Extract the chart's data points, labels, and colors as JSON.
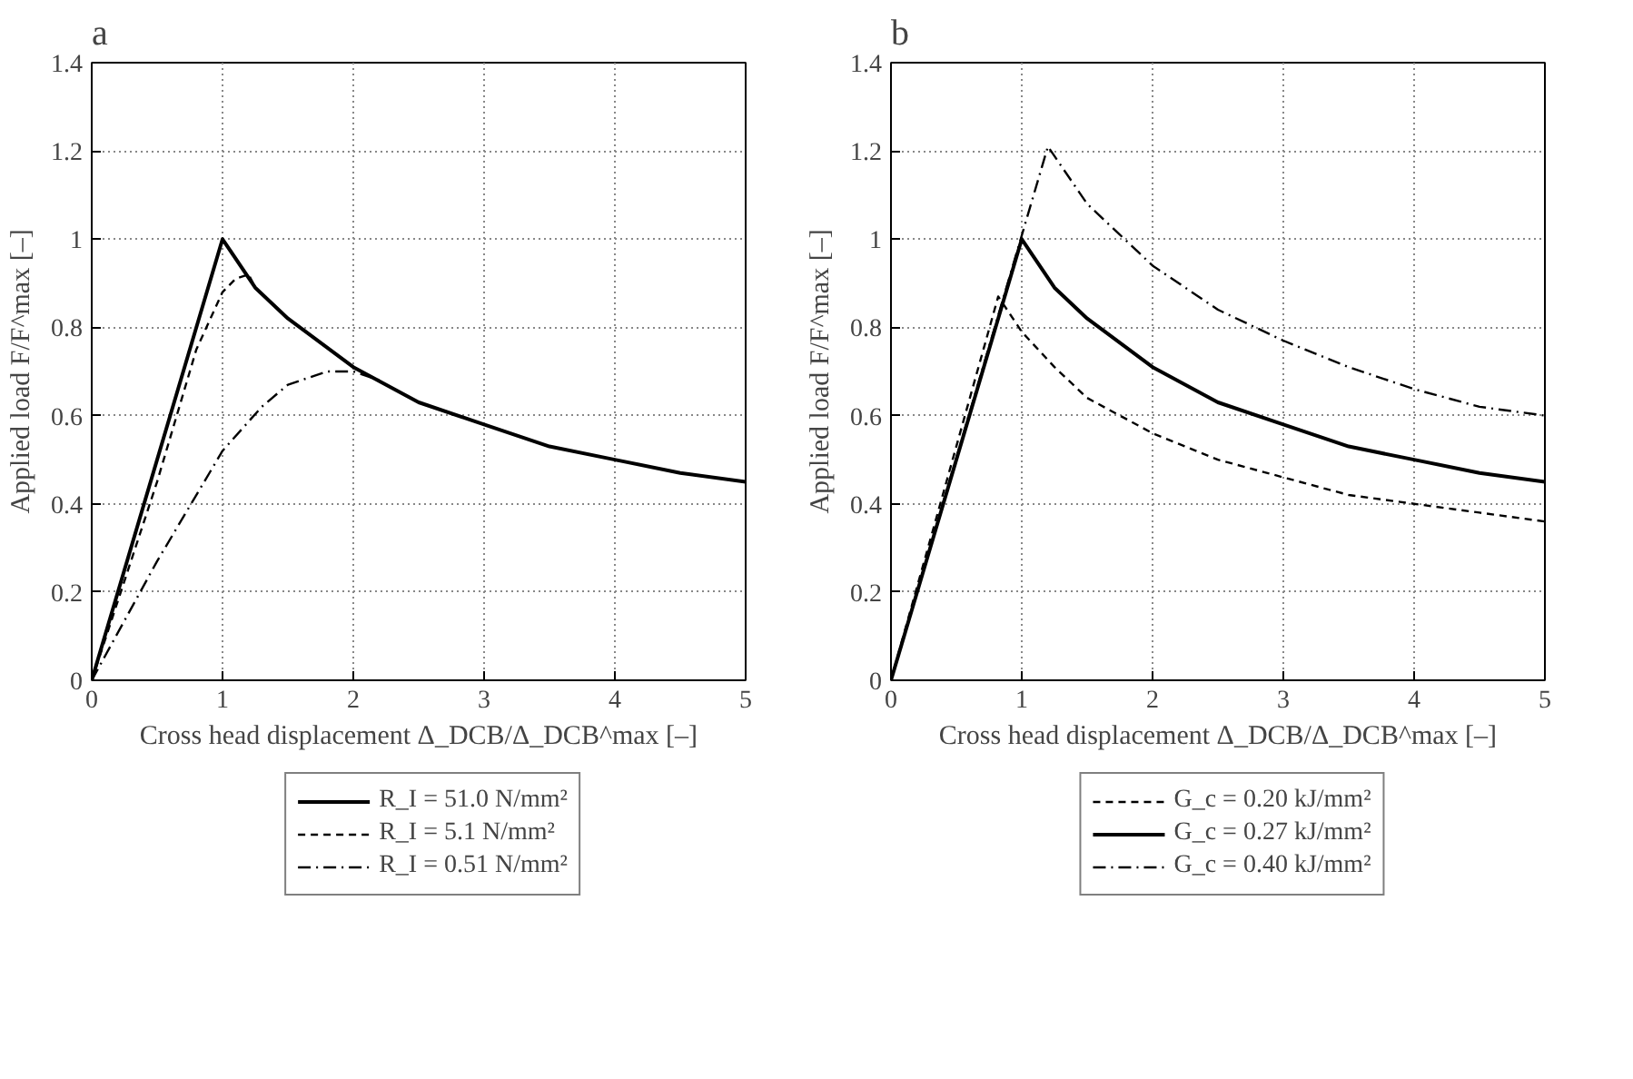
{
  "chart_data": [
    {
      "type": "line",
      "title": "a",
      "xlabel": "Cross head displacement Δ_DCB/Δ_DCB^max [–]",
      "ylabel": "Applied load F/F^max [–]",
      "xlim": [
        0,
        5
      ],
      "ylim": [
        0,
        1.4
      ],
      "xticks": [
        0,
        1,
        2,
        3,
        4,
        5
      ],
      "yticks": [
        0,
        0.2,
        0.4,
        0.6,
        0.8,
        1,
        1.2,
        1.4
      ],
      "grid": true,
      "legend": "bottom",
      "marker": "none",
      "series": [
        {
          "name": "R_I = 51.0 N/mm²",
          "color": "#000000",
          "line_style": "solid",
          "x": [
            0,
            1,
            1.25,
            1.5,
            2,
            2.5,
            3,
            3.5,
            4,
            4.5,
            5
          ],
          "values": [
            0,
            1,
            0.89,
            0.82,
            0.71,
            0.63,
            0.58,
            0.53,
            0.5,
            0.47,
            0.45
          ]
        },
        {
          "name": "R_I = 5.1 N/mm²",
          "color": "#000000",
          "line_style": "dashed",
          "x": [
            0,
            0.5,
            0.8,
            1,
            1.1,
            1.2,
            1.25
          ],
          "values": [
            0,
            0.45,
            0.75,
            0.88,
            0.91,
            0.92,
            0.89
          ]
        },
        {
          "name": "R_I = 0.51 N/mm²",
          "color": "#000000",
          "line_style": "dashdot",
          "x": [
            0,
            0.5,
            1,
            1.3,
            1.5,
            1.8,
            2,
            2.2
          ],
          "values": [
            0,
            0.27,
            0.52,
            0.62,
            0.67,
            0.7,
            0.7,
            0.68
          ]
        }
      ]
    },
    {
      "type": "line",
      "title": "b",
      "xlabel": "Cross head displacement Δ_DCB/Δ_DCB^max [–]",
      "ylabel": "Applied load F/F^max [–]",
      "xlim": [
        0,
        5
      ],
      "ylim": [
        0,
        1.4
      ],
      "xticks": [
        0,
        1,
        2,
        3,
        4,
        5
      ],
      "yticks": [
        0,
        0.2,
        0.4,
        0.6,
        0.8,
        1,
        1.2,
        1.4
      ],
      "grid": true,
      "legend": "bottom",
      "marker": "none",
      "series": [
        {
          "name": "G_c = 0.20 kJ/mm²",
          "color": "#000000",
          "line_style": "dashed",
          "x": [
            0,
            0.82,
            1,
            1.25,
            1.5,
            2,
            2.5,
            3,
            3.5,
            4,
            4.5,
            5
          ],
          "values": [
            0,
            0.87,
            0.79,
            0.71,
            0.64,
            0.56,
            0.5,
            0.46,
            0.42,
            0.4,
            0.38,
            0.36
          ]
        },
        {
          "name": "G_c = 0.27 kJ/mm²",
          "color": "#000000",
          "line_style": "solid",
          "x": [
            0,
            1,
            1.25,
            1.5,
            2,
            2.5,
            3,
            3.5,
            4,
            4.5,
            5
          ],
          "values": [
            0,
            1,
            0.89,
            0.82,
            0.71,
            0.63,
            0.58,
            0.53,
            0.5,
            0.47,
            0.45
          ]
        },
        {
          "name": "G_c = 0.40 kJ/mm²",
          "color": "#000000",
          "line_style": "dashdot",
          "x": [
            0,
            1.2,
            1.5,
            2,
            2.5,
            3,
            3.5,
            4,
            4.5,
            5
          ],
          "values": [
            0,
            1.21,
            1.08,
            0.94,
            0.84,
            0.77,
            0.71,
            0.66,
            0.62,
            0.6
          ]
        }
      ]
    }
  ]
}
